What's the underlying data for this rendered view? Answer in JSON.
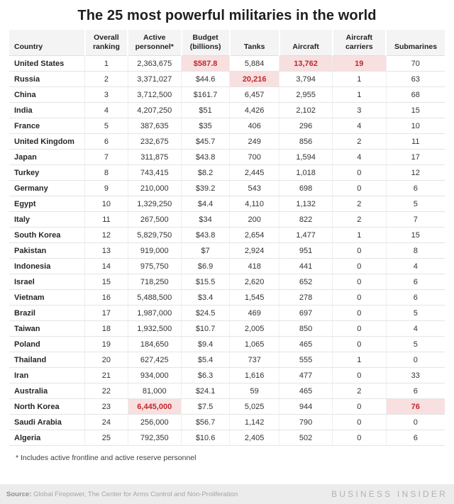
{
  "title": "The 25 most powerful militaries in the world",
  "chart_data": {
    "type": "table",
    "title": "The 25 most powerful militaries in the world",
    "columns": [
      "Country",
      "Overall ranking",
      "Active personnel*",
      "Budget (billions)",
      "Tanks",
      "Aircraft",
      "Aircraft carriers",
      "Submarines"
    ],
    "rows": [
      {
        "country": "United States",
        "rank": "1",
        "personnel": "2,363,675",
        "budget": "$587.8",
        "tanks": "5,884",
        "aircraft": "13,762",
        "carriers": "19",
        "submarines": "70",
        "highlights": [
          "budget",
          "aircraft",
          "carriers"
        ]
      },
      {
        "country": "Russia",
        "rank": "2",
        "personnel": "3,371,027",
        "budget": "$44.6",
        "tanks": "20,216",
        "aircraft": "3,794",
        "carriers": "1",
        "submarines": "63",
        "highlights": [
          "tanks"
        ]
      },
      {
        "country": "China",
        "rank": "3",
        "personnel": "3,712,500",
        "budget": "$161.7",
        "tanks": "6,457",
        "aircraft": "2,955",
        "carriers": "1",
        "submarines": "68",
        "highlights": []
      },
      {
        "country": "India",
        "rank": "4",
        "personnel": "4,207,250",
        "budget": "$51",
        "tanks": "4,426",
        "aircraft": "2,102",
        "carriers": "3",
        "submarines": "15",
        "highlights": []
      },
      {
        "country": "France",
        "rank": "5",
        "personnel": "387,635",
        "budget": "$35",
        "tanks": "406",
        "aircraft": "296",
        "carriers": "4",
        "submarines": "10",
        "highlights": []
      },
      {
        "country": "United Kingdom",
        "rank": "6",
        "personnel": "232,675",
        "budget": "$45.7",
        "tanks": "249",
        "aircraft": "856",
        "carriers": "2",
        "submarines": "11",
        "highlights": []
      },
      {
        "country": "Japan",
        "rank": "7",
        "personnel": "311,875",
        "budget": "$43.8",
        "tanks": "700",
        "aircraft": "1,594",
        "carriers": "4",
        "submarines": "17",
        "highlights": []
      },
      {
        "country": "Turkey",
        "rank": "8",
        "personnel": "743,415",
        "budget": "$8.2",
        "tanks": "2,445",
        "aircraft": "1,018",
        "carriers": "0",
        "submarines": "12",
        "highlights": []
      },
      {
        "country": "Germany",
        "rank": "9",
        "personnel": "210,000",
        "budget": "$39.2",
        "tanks": "543",
        "aircraft": "698",
        "carriers": "0",
        "submarines": "6",
        "highlights": []
      },
      {
        "country": "Egypt",
        "rank": "10",
        "personnel": "1,329,250",
        "budget": "$4.4",
        "tanks": "4,110",
        "aircraft": "1,132",
        "carriers": "2",
        "submarines": "5",
        "highlights": []
      },
      {
        "country": "Italy",
        "rank": "11",
        "personnel": "267,500",
        "budget": "$34",
        "tanks": "200",
        "aircraft": "822",
        "carriers": "2",
        "submarines": "7",
        "highlights": []
      },
      {
        "country": "South Korea",
        "rank": "12",
        "personnel": "5,829,750",
        "budget": "$43.8",
        "tanks": "2,654",
        "aircraft": "1,477",
        "carriers": "1",
        "submarines": "15",
        "highlights": []
      },
      {
        "country": "Pakistan",
        "rank": "13",
        "personnel": "919,000",
        "budget": "$7",
        "tanks": "2,924",
        "aircraft": "951",
        "carriers": "0",
        "submarines": "8",
        "highlights": []
      },
      {
        "country": "Indonesia",
        "rank": "14",
        "personnel": "975,750",
        "budget": "$6.9",
        "tanks": "418",
        "aircraft": "441",
        "carriers": "0",
        "submarines": "4",
        "highlights": []
      },
      {
        "country": "Israel",
        "rank": "15",
        "personnel": "718,250",
        "budget": "$15.5",
        "tanks": "2,620",
        "aircraft": "652",
        "carriers": "0",
        "submarines": "6",
        "highlights": []
      },
      {
        "country": "Vietnam",
        "rank": "16",
        "personnel": "5,488,500",
        "budget": "$3.4",
        "tanks": "1,545",
        "aircraft": "278",
        "carriers": "0",
        "submarines": "6",
        "highlights": []
      },
      {
        "country": "Brazil",
        "rank": "17",
        "personnel": "1,987,000",
        "budget": "$24.5",
        "tanks": "469",
        "aircraft": "697",
        "carriers": "0",
        "submarines": "5",
        "highlights": []
      },
      {
        "country": "Taiwan",
        "rank": "18",
        "personnel": "1,932,500",
        "budget": "$10.7",
        "tanks": "2,005",
        "aircraft": "850",
        "carriers": "0",
        "submarines": "4",
        "highlights": []
      },
      {
        "country": "Poland",
        "rank": "19",
        "personnel": "184,650",
        "budget": "$9.4",
        "tanks": "1,065",
        "aircraft": "465",
        "carriers": "0",
        "submarines": "5",
        "highlights": []
      },
      {
        "country": "Thailand",
        "rank": "20",
        "personnel": "627,425",
        "budget": "$5.4",
        "tanks": "737",
        "aircraft": "555",
        "carriers": "1",
        "submarines": "0",
        "highlights": []
      },
      {
        "country": "Iran",
        "rank": "21",
        "personnel": "934,000",
        "budget": "$6.3",
        "tanks": "1,616",
        "aircraft": "477",
        "carriers": "0",
        "submarines": "33",
        "highlights": []
      },
      {
        "country": "Australia",
        "rank": "22",
        "personnel": "81,000",
        "budget": "$24.1",
        "tanks": "59",
        "aircraft": "465",
        "carriers": "2",
        "submarines": "6",
        "highlights": []
      },
      {
        "country": "North Korea",
        "rank": "23",
        "personnel": "6,445,000",
        "budget": "$7.5",
        "tanks": "5,025",
        "aircraft": "944",
        "carriers": "0",
        "submarines": "76",
        "highlights": [
          "personnel",
          "submarines"
        ]
      },
      {
        "country": "Saudi Arabia",
        "rank": "24",
        "personnel": "256,000",
        "budget": "$56.7",
        "tanks": "1,142",
        "aircraft": "790",
        "carriers": "0",
        "submarines": "0",
        "highlights": []
      },
      {
        "country": "Algeria",
        "rank": "25",
        "personnel": "792,350",
        "budget": "$10.6",
        "tanks": "2,405",
        "aircraft": "502",
        "carriers": "0",
        "submarines": "6",
        "highlights": []
      }
    ]
  },
  "footnote": "* Includes active frontline and active reserve personnel",
  "source": {
    "label": "Source:",
    "text": "Global Firepower, The Center for Arms Control and Non-Proliferation"
  },
  "brand": "BUSINESS INSIDER",
  "colors": {
    "highlight_bg": "#f8e0e0",
    "highlight_text": "#c1272d",
    "footer_bg": "#ececec"
  }
}
